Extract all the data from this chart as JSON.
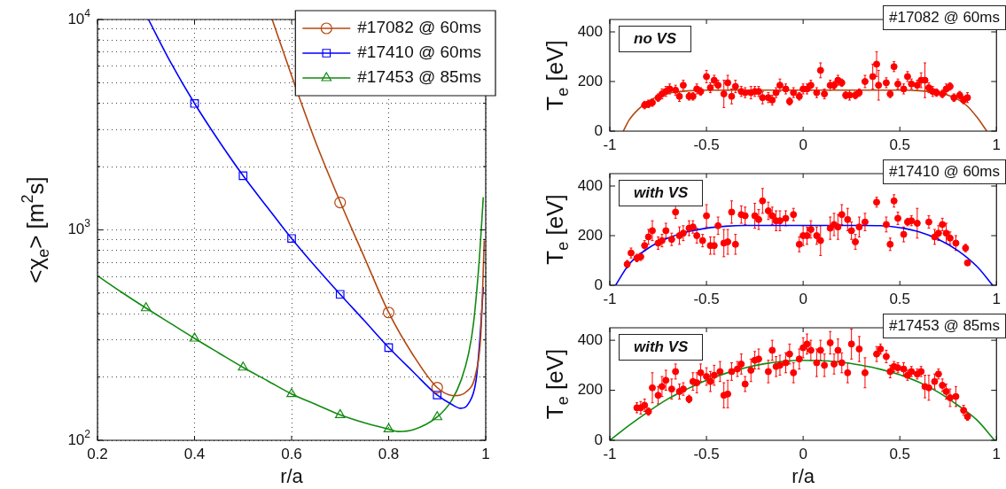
{
  "chart_data": [
    {
      "type": "line",
      "xlabel": "r/a",
      "ylabel": "<χ$_{e}$> [m$^{2}$s]",
      "log": "y",
      "xlim": [
        0.2,
        1
      ],
      "ylim": [
        100,
        10000
      ],
      "xticks": [
        0.2,
        0.4,
        0.6,
        0.8,
        1
      ],
      "yticks": [
        {
          "value": 100,
          "label": "10$^{2}$"
        },
        {
          "value": 200,
          "label": null
        },
        {
          "value": 300,
          "label": null
        },
        {
          "value": 400,
          "label": null
        },
        {
          "value": 500,
          "label": null
        },
        {
          "value": 600,
          "label": null
        },
        {
          "value": 700,
          "label": null
        },
        {
          "value": 800,
          "label": null
        },
        {
          "value": 900,
          "label": null
        },
        {
          "value": 1000,
          "label": "10$^{3}$"
        },
        {
          "value": 2000,
          "label": null
        },
        {
          "value": 3000,
          "label": null
        },
        {
          "value": 4000,
          "label": null
        },
        {
          "value": 5000,
          "label": null
        },
        {
          "value": 6000,
          "label": null
        },
        {
          "value": 7000,
          "label": null
        },
        {
          "value": 8000,
          "label": null
        },
        {
          "value": 9000,
          "label": null
        },
        {
          "value": 10000,
          "label": "10$^{4}$"
        }
      ],
      "grid": true,
      "legend": "top right",
      "series": [
        {
          "name": "#17082 @ 60ms",
          "color": "#b4470f",
          "marker": "none",
          "x": [
            0.56,
            0.6,
            0.65,
            0.7,
            0.75,
            0.8,
            0.85,
            0.9,
            0.935,
            0.96,
            0.98,
            0.99,
            0.997
          ],
          "values": [
            10000,
            5400,
            2600,
            1360,
            740,
            405,
            255,
            178,
            163,
            170,
            210,
            320,
            890
          ]
        },
        {
          "type": "scatter",
          "color": "#b4470f",
          "marker": "circle",
          "x": [
            0.7,
            0.8,
            0.9
          ],
          "values": [
            1350,
            405,
            178
          ]
        },
        {
          "name": "#17410 @ 60ms",
          "color": "#0000ff",
          "marker": "none",
          "x": [
            0.305,
            0.35,
            0.4,
            0.45,
            0.5,
            0.55,
            0.6,
            0.65,
            0.7,
            0.75,
            0.8,
            0.85,
            0.9,
            0.93,
            0.948,
            0.965,
            0.98,
            0.988,
            0.995
          ],
          "values": [
            10000,
            6300,
            3990,
            2650,
            1810,
            1280,
            910,
            665,
            494,
            370,
            276,
            212,
            164,
            148,
            142,
            150,
            192,
            303,
            535
          ]
        },
        {
          "type": "scatter",
          "color": "#0000ff",
          "marker": "square",
          "x": [
            0.4,
            0.5,
            0.6,
            0.7,
            0.8,
            0.9
          ],
          "values": [
            3990,
            1810,
            910,
            494,
            276,
            164
          ]
        },
        {
          "name": "#17453 @ 85ms",
          "color": "#108a10",
          "marker": "none",
          "x": [
            0.2,
            0.25,
            0.3,
            0.35,
            0.4,
            0.45,
            0.5,
            0.55,
            0.6,
            0.65,
            0.7,
            0.75,
            0.8,
            0.82,
            0.85,
            0.9,
            0.93,
            0.95,
            0.965,
            0.975,
            0.987,
            0.995
          ],
          "values": [
            605,
            505,
            425,
            360,
            305,
            260,
            222,
            192,
            166,
            148,
            132,
            121,
            113,
            110,
            112,
            129,
            155,
            195,
            260,
            362,
            735,
            1430
          ]
        },
        {
          "type": "scatter",
          "color": "#108a10",
          "marker": "triangle",
          "x": [
            0.3,
            0.4,
            0.5,
            0.6,
            0.7,
            0.8,
            0.9
          ],
          "values": [
            425,
            305,
            222,
            166,
            132,
            113,
            129
          ]
        }
      ]
    },
    {
      "type": "scatter",
      "ylabel": "T$_{e}$ [eV]",
      "xlim": [
        -1,
        1
      ],
      "ylim": [
        0,
        450
      ],
      "xticks": [
        -1,
        -0.5,
        0,
        0.5,
        1
      ],
      "yticks": [
        0,
        200,
        400
      ],
      "annotations": [
        "no VS",
        "#17082 @ 60ms"
      ],
      "series": [
        {
          "color": "#ff0000",
          "marker": "circle",
          "x": [
            -0.82,
            -0.8,
            -0.78,
            -0.75,
            -0.73,
            -0.71,
            -0.69,
            -0.66,
            -0.64,
            -0.62,
            -0.59,
            -0.57,
            -0.55,
            -0.53,
            -0.5,
            -0.48,
            -0.46,
            -0.44,
            -0.41,
            -0.39,
            -0.37,
            -0.35,
            -0.32,
            -0.3,
            -0.27,
            -0.25,
            -0.23,
            -0.21,
            -0.18,
            -0.16,
            -0.14,
            -0.12,
            -0.09,
            -0.07,
            -0.05,
            -0.02,
            0,
            0.02,
            0.04,
            0.07,
            0.09,
            0.11,
            0.14,
            0.16,
            0.18,
            0.2,
            0.22,
            0.24,
            0.27,
            0.29,
            0.32,
            0.36,
            0.38,
            0.39,
            0.43,
            0.45,
            0.47,
            0.49,
            0.52,
            0.54,
            0.56,
            0.59,
            0.61,
            0.63,
            0.65,
            0.67,
            0.69,
            0.72,
            0.74,
            0.76,
            0.78,
            0.81,
            0.83,
            0.85
          ],
          "values": [
            105,
            110,
            115,
            135,
            150,
            160,
            170,
            165,
            140,
            185,
            140,
            140,
            170,
            160,
            220,
            175,
            205,
            185,
            150,
            195,
            140,
            180,
            160,
            155,
            155,
            160,
            160,
            135,
            135,
            125,
            155,
            185,
            170,
            120,
            155,
            140,
            170,
            170,
            185,
            155,
            245,
            150,
            185,
            185,
            205,
            195,
            145,
            145,
            145,
            155,
            200,
            220,
            270,
            185,
            195,
            150,
            260,
            190,
            170,
            220,
            190,
            185,
            205,
            205,
            175,
            160,
            155,
            150,
            170,
            180,
            135,
            145,
            125,
            135
          ],
          "errors": [
            15,
            15,
            15,
            15,
            20,
            20,
            20,
            20,
            20,
            20,
            15,
            15,
            20,
            15,
            25,
            20,
            20,
            20,
            55,
            30,
            30,
            25,
            20,
            20,
            25,
            20,
            20,
            25,
            20,
            20,
            20,
            25,
            20,
            15,
            20,
            15,
            20,
            20,
            20,
            20,
            30,
            20,
            20,
            15,
            20,
            15,
            15,
            20,
            15,
            15,
            25,
            50,
            50,
            60,
            20,
            15,
            20,
            20,
            20,
            20,
            20,
            20,
            30,
            70,
            20,
            20,
            15,
            15,
            20,
            15,
            15,
            15,
            15,
            20
          ]
        },
        {
          "type": "line",
          "color": "#b4470f",
          "marker": "none",
          "x": [
            -0.93,
            -0.9,
            -0.85,
            -0.8,
            -0.75,
            -0.7,
            -0.6,
            -0.5,
            0.5,
            0.6,
            0.7,
            0.75,
            0.8,
            0.85,
            0.9,
            0.95
          ],
          "values": [
            0,
            45,
            90,
            120,
            140,
            152,
            162,
            165,
            165,
            163,
            155,
            145,
            128,
            100,
            55,
            0
          ]
        }
      ]
    },
    {
      "type": "scatter",
      "ylabel": "T$_{e}$ [eV]",
      "xlim": [
        -1,
        1
      ],
      "ylim": [
        0,
        450
      ],
      "xticks": [
        -1,
        -0.5,
        0,
        0.5,
        1
      ],
      "yticks": [
        0,
        200,
        400
      ],
      "annotations": [
        "with VS",
        "#17410 @ 60ms"
      ],
      "series": [
        {
          "color": "#ff0000",
          "marker": "circle",
          "x": [
            -0.91,
            -0.89,
            -0.86,
            -0.84,
            -0.82,
            -0.8,
            -0.78,
            -0.75,
            -0.73,
            -0.71,
            -0.68,
            -0.66,
            -0.64,
            -0.62,
            -0.59,
            -0.57,
            -0.55,
            -0.52,
            -0.5,
            -0.48,
            -0.46,
            -0.44,
            -0.41,
            -0.39,
            -0.37,
            -0.35,
            -0.32,
            -0.3,
            -0.25,
            -0.23,
            -0.21,
            -0.18,
            -0.16,
            -0.14,
            -0.12,
            -0.09,
            -0.05,
            -0.02,
            0,
            0.02,
            0.04,
            0.07,
            0.09,
            0.14,
            0.16,
            0.18,
            0.2,
            0.23,
            0.25,
            0.27,
            0.29,
            0.32,
            0.38,
            0.43,
            0.45,
            0.47,
            0.49,
            0.52,
            0.54,
            0.56,
            0.59,
            0.65,
            0.68,
            0.7,
            0.72,
            0.74,
            0.76,
            0.79,
            0.84,
            0.85
          ],
          "values": [
            85,
            130,
            110,
            115,
            160,
            195,
            220,
            170,
            180,
            220,
            185,
            295,
            200,
            210,
            230,
            235,
            200,
            180,
            280,
            160,
            160,
            240,
            170,
            175,
            295,
            165,
            285,
            280,
            280,
            265,
            340,
            300,
            280,
            260,
            260,
            270,
            285,
            165,
            200,
            200,
            225,
            200,
            180,
            230,
            245,
            235,
            285,
            265,
            220,
            175,
            235,
            255,
            335,
            245,
            165,
            340,
            270,
            205,
            255,
            260,
            250,
            255,
            195,
            210,
            245,
            210,
            190,
            170,
            150,
            90
          ],
          "errors": [
            15,
            20,
            15,
            15,
            20,
            30,
            40,
            25,
            25,
            30,
            25,
            25,
            35,
            30,
            30,
            25,
            30,
            25,
            45,
            35,
            35,
            35,
            55,
            50,
            45,
            40,
            35,
            35,
            50,
            40,
            50,
            35,
            35,
            40,
            40,
            30,
            25,
            30,
            40,
            35,
            35,
            35,
            60,
            45,
            45,
            50,
            40,
            45,
            35,
            30,
            40,
            35,
            20,
            30,
            25,
            25,
            25,
            30,
            15,
            20,
            60,
            25,
            30,
            30,
            25,
            40,
            25,
            30,
            15,
            null
          ]
        },
        {
          "type": "line",
          "color": "#0000ff",
          "marker": "none",
          "x": [
            -0.97,
            -0.9,
            -0.8,
            -0.7,
            -0.6,
            -0.5,
            -0.4,
            -0.3,
            0.3,
            0.4,
            0.5,
            0.6,
            0.7,
            0.8,
            0.9,
            0.98
          ],
          "values": [
            0,
            85,
            150,
            190,
            215,
            230,
            238,
            241,
            241,
            240,
            232,
            215,
            185,
            140,
            75,
            0
          ]
        }
      ]
    },
    {
      "type": "scatter",
      "xlabel": "r/a",
      "ylabel": "T$_{e}$ [eV]",
      "xlim": [
        -1,
        1
      ],
      "ylim": [
        0,
        450
      ],
      "xticks": [
        -1,
        -0.5,
        0,
        0.5,
        1
      ],
      "yticks": [
        0,
        200,
        400
      ],
      "annotations": [
        "with VS",
        "#17453 @ 85ms"
      ],
      "series": [
        {
          "color": "#ff0000",
          "marker": "circle",
          "x": [
            -0.86,
            -0.84,
            -0.82,
            -0.8,
            -0.78,
            -0.75,
            -0.73,
            -0.71,
            -0.68,
            -0.66,
            -0.64,
            -0.62,
            -0.59,
            -0.57,
            -0.55,
            -0.53,
            -0.5,
            -0.48,
            -0.46,
            -0.43,
            -0.41,
            -0.39,
            -0.37,
            -0.34,
            -0.32,
            -0.3,
            -0.27,
            -0.25,
            -0.23,
            -0.18,
            -0.16,
            -0.14,
            -0.12,
            -0.09,
            -0.07,
            -0.05,
            -0.02,
            0,
            0.02,
            0.04,
            0.07,
            0.09,
            0.11,
            0.14,
            0.16,
            0.18,
            0.2,
            0.23,
            0.25,
            0.29,
            0.32,
            0.38,
            0.4,
            0.43,
            0.45,
            0.47,
            0.49,
            0.52,
            0.54,
            0.56,
            0.59,
            0.61,
            0.63,
            0.65,
            0.68,
            0.7,
            0.72,
            0.74,
            0.76,
            0.79,
            0.83,
            0.85
          ],
          "values": [
            130,
            130,
            140,
            115,
            210,
            180,
            215,
            240,
            205,
            275,
            195,
            205,
            165,
            235,
            230,
            270,
            255,
            235,
            260,
            275,
            180,
            185,
            275,
            285,
            305,
            225,
            280,
            320,
            325,
            275,
            360,
            295,
            300,
            310,
            345,
            270,
            325,
            370,
            385,
            360,
            310,
            360,
            300,
            390,
            305,
            360,
            310,
            270,
            385,
            365,
            270,
            345,
            365,
            335,
            275,
            295,
            290,
            285,
            260,
            275,
            265,
            275,
            215,
            210,
            235,
            265,
            220,
            195,
            170,
            175,
            120,
            95
          ],
          "errors": [
            20,
            25,
            25,
            15,
            60,
            35,
            40,
            40,
            40,
            30,
            30,
            25,
            15,
            35,
            40,
            35,
            35,
            40,
            40,
            40,
            50,
            55,
            35,
            30,
            40,
            30,
            45,
            35,
            40,
            45,
            40,
            40,
            40,
            40,
            40,
            40,
            40,
            40,
            40,
            40,
            55,
            40,
            45,
            45,
            40,
            45,
            40,
            40,
            60,
            50,
            60,
            30,
            20,
            25,
            25,
            20,
            20,
            25,
            20,
            20,
            20,
            20,
            45,
            50,
            30,
            20,
            25,
            30,
            35,
            40,
            20,
            15
          ]
        },
        {
          "type": "line",
          "color": "#108a10",
          "marker": "none",
          "x": [
            -1,
            -0.9,
            -0.8,
            -0.7,
            -0.6,
            -0.5,
            -0.4,
            -0.3,
            -0.2,
            -0.1,
            0,
            0.1,
            0.2,
            0.3,
            0.4,
            0.5,
            0.6,
            0.7,
            0.8,
            0.9,
            0.99
          ],
          "values": [
            0,
            60,
            115,
            165,
            205,
            240,
            268,
            290,
            306,
            316,
            320,
            318,
            312,
            300,
            284,
            262,
            232,
            192,
            140,
            80,
            0
          ]
        }
      ]
    }
  ]
}
